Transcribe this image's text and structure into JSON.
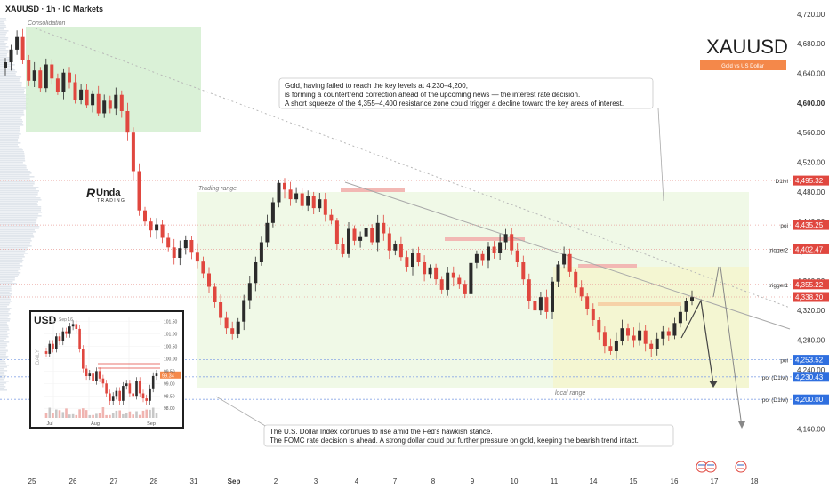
{
  "header": {
    "symbol_line": "XAUUSD · 1h · IC Markets"
  },
  "brand": {
    "ticker": "XAUUSD",
    "badge": "Gold vs US Dollar",
    "logo_text": "Unda",
    "logo_sub": "TRADING",
    "badge_color": "#f4884a"
  },
  "annotations": {
    "consolidation": "Consolidation",
    "trading_range": "Trading range",
    "local_range": "local range",
    "note_top": [
      "Gold, having failed to reach the key levels at 4,230–4,200,",
      "is forming a countertrend correction ahead of the upcoming news — the interest rate decision.",
      "A short squeeze of the 4,355–4,400 resistance zone could trigger a decline toward the key areas of interest."
    ],
    "note_bottom": [
      "The U.S. Dollar Index continues to rise amid the Fed's hawkish stance.",
      "The FOMC rate decision is ahead. A strong dollar could put further pressure on gold, keeping the bearish trend intact."
    ]
  },
  "inset": {
    "title": "USD",
    "date_label": "Sep 16",
    "side_label": "DAILY",
    "current": "99.34",
    "y_ticks": [
      "101.50",
      "101.00",
      "100.50",
      "100.00",
      "99.50",
      "99.00",
      "98.50",
      "98.00"
    ],
    "x_ticks": [
      "Jul",
      "Aug",
      "Sep"
    ],
    "chart_data": {
      "type": "candlestick",
      "ylim": [
        97.9,
        101.7
      ],
      "close": [
        100.2,
        100.6,
        100.4,
        100.9,
        100.7,
        101.1,
        101.0,
        101.3,
        101.4,
        101.2,
        100.4,
        99.6,
        99.3,
        99.4,
        99.1,
        99.5,
        99.2,
        99.0,
        98.6,
        98.3,
        98.5,
        98.7,
        98.3,
        98.9,
        99.0,
        98.6,
        98.5,
        99.1,
        98.6,
        98.4,
        98.3,
        98.8,
        99.3,
        99.4
      ],
      "levels": [
        {
          "y": 99.8,
          "color": "#e0473f"
        },
        {
          "y": 99.62,
          "color": "#e0473f"
        }
      ]
    }
  },
  "chart_data": {
    "type": "candlestick",
    "title": "XAUUSD · 1h · IC Markets",
    "ylim": [
      4127,
      4727
    ],
    "y_ticks": [
      4720,
      4680,
      4640,
      4600,
      4560,
      4520,
      4480,
      4440,
      4400,
      4360,
      4320,
      4280,
      4240,
      4200,
      4160
    ],
    "y_tick_labels": [
      "4,720.00",
      "4,680.00",
      "4,640.00",
      "4,600.00",
      "4,560.00",
      "4,520.00",
      "4,480.00",
      "4,440.00",
      "4,400.00",
      "4,360.00",
      "4,320.00",
      "4,280.00",
      "4,240.00",
      "4,200.00",
      "4,160.00"
    ],
    "x_labels": [
      "25",
      "26",
      "27",
      "28",
      "31",
      "Sep",
      "2",
      "3",
      "4",
      "7",
      "8",
      "9",
      "10",
      "11",
      "14",
      "15",
      "16",
      "17",
      "18"
    ],
    "close": [
      4655,
      4672,
      4689,
      4658,
      4630,
      4644,
      4620,
      4652,
      4633,
      4615,
      4641,
      4628,
      4604,
      4618,
      4597,
      4612,
      4586,
      4603,
      4592,
      4611,
      4589,
      4560,
      4508,
      4455,
      4440,
      4428,
      4436,
      4418,
      4405,
      4391,
      4404,
      4415,
      4399,
      4386,
      4370,
      4352,
      4331,
      4310,
      4296,
      4288,
      4305,
      4334,
      4357,
      4385,
      4412,
      4438,
      4466,
      4492,
      4483,
      4470,
      4478,
      4461,
      4474,
      4458,
      4470,
      4449,
      4441,
      4410,
      4396,
      4430,
      4414,
      4419,
      4431,
      4412,
      4438,
      4424,
      4401,
      4410,
      4392,
      4379,
      4397,
      4385,
      4369,
      4378,
      4362,
      4348,
      4371,
      4364,
      4356,
      4342,
      4384,
      4396,
      4388,
      4406,
      4398,
      4412,
      4423,
      4401,
      4385,
      4362,
      4333,
      4320,
      4338,
      4318,
      4359,
      4382,
      4396,
      4372,
      4351,
      4339,
      4322,
      4307,
      4291,
      4272,
      4265,
      4279,
      4296,
      4286,
      4280,
      4293,
      4275,
      4268,
      4282,
      4292,
      4286,
      4303,
      4318,
      4333,
      4338
    ],
    "price_labels": [
      {
        "value": 4495.32,
        "label": "4,495.32",
        "name": "D1lvl",
        "color": "#e0473f"
      },
      {
        "value": 4435.25,
        "label": "4,435.25",
        "name": "poi",
        "color": "#e0473f"
      },
      {
        "value": 4402.47,
        "label": "4,402.47",
        "name": "trigger2",
        "color": "#e0473f"
      },
      {
        "value": 4355.22,
        "label": "4,355.22",
        "name": "trigger1",
        "color": "#e0473f"
      },
      {
        "value": 4338.2,
        "label": "4,338.20",
        "name": "",
        "color": "#e0473f"
      },
      {
        "value": 4253.52,
        "label": "4,253.52",
        "name": "poi",
        "color": "#2f6fdf"
      },
      {
        "value": 4230.43,
        "label": "4,230.43",
        "name": "poi (D1lvl)",
        "color": "#2f6fdf"
      },
      {
        "value": 4200.0,
        "label": "4,200.00",
        "name": "poi (D1lvl)",
        "color": "#2f6fdf"
      }
    ],
    "bold_tick": "4,600.00",
    "colors": {
      "up": "#2b2b2b",
      "down": "#e0473f",
      "consolidation": "#d4efd0",
      "range": "#eef8e4",
      "local": "#f4f5cf"
    }
  }
}
